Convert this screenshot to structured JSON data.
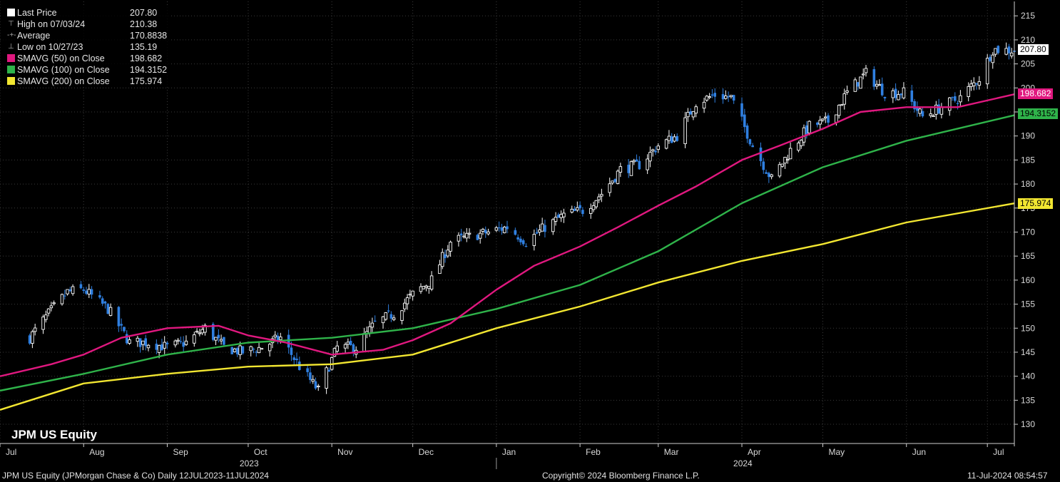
{
  "legend": {
    "last_price_label": "Last Price",
    "last_price_value": "207.80",
    "high_label": "High on 07/03/24",
    "high_value": "210.38",
    "average_label": "Average",
    "average_value": "170.8838",
    "low_label": "Low on 10/27/23",
    "low_value": "135.19",
    "sma50_label": "SMAVG (50)  on Close",
    "sma50_value": "198.682",
    "sma100_label": "SMAVG (100)  on Close",
    "sma100_value": "194.3152",
    "sma200_label": "SMAVG (200)  on Close",
    "sma200_value": "175.974"
  },
  "ticker_label": "JPM US Equity",
  "footer": {
    "left": "JPM US Equity (JPMorgan Chase & Co)  Daily 12JUL2023-11JUL2024",
    "center": "Copyright© 2024 Bloomberg Finance L.P.",
    "right": "11-Jul-2024 08:54:57"
  },
  "colors": {
    "background": "#000000",
    "up_candle": "#ffffff",
    "down_candle": "#2f7fe0",
    "sma50": "#e0187f",
    "sma100": "#2fb34a",
    "sma200": "#f2e631",
    "last_tag": "#ffffff",
    "grid": "#3a3a3a"
  },
  "chart_data": {
    "type": "candlestick",
    "x_range": [
      "2023-07-01",
      "2024-07-11"
    ],
    "ylim": [
      126,
      218
    ],
    "y_ticks": [
      130,
      135,
      140,
      145,
      150,
      155,
      160,
      165,
      170,
      175,
      180,
      185,
      190,
      195,
      200,
      205,
      210,
      215
    ],
    "month_ticks": [
      {
        "label": "Jul",
        "date": "2023-07-01"
      },
      {
        "label": "Aug",
        "date": "2023-08-01"
      },
      {
        "label": "Sep",
        "date": "2023-09-01"
      },
      {
        "label": "Oct",
        "date": "2023-10-01"
      },
      {
        "label": "Nov",
        "date": "2023-11-01"
      },
      {
        "label": "Dec",
        "date": "2023-12-01"
      },
      {
        "label": "Jan",
        "date": "2024-01-01"
      },
      {
        "label": "Feb",
        "date": "2024-02-01"
      },
      {
        "label": "Mar",
        "date": "2024-03-01"
      },
      {
        "label": "Apr",
        "date": "2024-04-01"
      },
      {
        "label": "May",
        "date": "2024-05-01"
      },
      {
        "label": "Jun",
        "date": "2024-06-01"
      },
      {
        "label": "Jul",
        "date": "2024-07-01"
      }
    ],
    "year_labels": [
      {
        "label": "2023",
        "date": "2023-10-01"
      },
      {
        "label": "2024",
        "date": "2024-04-01"
      }
    ],
    "year_divider": "2024-01-01",
    "price_path": [
      {
        "date": "2023-07-12",
        "close": 148
      },
      {
        "date": "2023-07-19",
        "close": 153
      },
      {
        "date": "2023-07-26",
        "close": 157.5
      },
      {
        "date": "2023-08-01",
        "close": 158
      },
      {
        "date": "2023-08-10",
        "close": 154
      },
      {
        "date": "2023-08-18",
        "close": 147
      },
      {
        "date": "2023-08-25",
        "close": 147
      },
      {
        "date": "2023-09-01",
        "close": 146
      },
      {
        "date": "2023-09-08",
        "close": 147
      },
      {
        "date": "2023-09-15",
        "close": 150
      },
      {
        "date": "2023-09-22",
        "close": 146
      },
      {
        "date": "2023-09-29",
        "close": 145
      },
      {
        "date": "2023-10-06",
        "close": 146
      },
      {
        "date": "2023-10-13",
        "close": 148
      },
      {
        "date": "2023-10-20",
        "close": 142
      },
      {
        "date": "2023-10-27",
        "close": 137
      },
      {
        "date": "2023-11-03",
        "close": 146
      },
      {
        "date": "2023-11-10",
        "close": 146
      },
      {
        "date": "2023-11-17",
        "close": 151
      },
      {
        "date": "2023-11-24",
        "close": 153
      },
      {
        "date": "2023-12-01",
        "close": 157
      },
      {
        "date": "2023-12-08",
        "close": 160
      },
      {
        "date": "2023-12-15",
        "close": 168
      },
      {
        "date": "2023-12-22",
        "close": 169
      },
      {
        "date": "2023-12-29",
        "close": 170
      },
      {
        "date": "2024-01-05",
        "close": 171
      },
      {
        "date": "2024-01-12",
        "close": 168
      },
      {
        "date": "2024-01-19",
        "close": 171
      },
      {
        "date": "2024-01-26",
        "close": 173.5
      },
      {
        "date": "2024-02-02",
        "close": 174.5
      },
      {
        "date": "2024-02-09",
        "close": 178
      },
      {
        "date": "2024-02-16",
        "close": 183
      },
      {
        "date": "2024-02-23",
        "close": 184
      },
      {
        "date": "2024-03-01",
        "close": 188
      },
      {
        "date": "2024-03-08",
        "close": 190
      },
      {
        "date": "2024-03-15",
        "close": 197
      },
      {
        "date": "2024-03-22",
        "close": 198.5
      },
      {
        "date": "2024-03-28",
        "close": 198
      },
      {
        "date": "2024-04-05",
        "close": 188
      },
      {
        "date": "2024-04-12",
        "close": 181
      },
      {
        "date": "2024-04-19",
        "close": 187
      },
      {
        "date": "2024-04-26",
        "close": 192
      },
      {
        "date": "2024-05-03",
        "close": 193
      },
      {
        "date": "2024-05-10",
        "close": 199
      },
      {
        "date": "2024-05-17",
        "close": 203
      },
      {
        "date": "2024-05-24",
        "close": 199
      },
      {
        "date": "2024-05-31",
        "close": 199
      },
      {
        "date": "2024-06-07",
        "close": 194
      },
      {
        "date": "2024-06-14",
        "close": 196
      },
      {
        "date": "2024-06-21",
        "close": 198
      },
      {
        "date": "2024-06-28",
        "close": 202
      },
      {
        "date": "2024-07-03",
        "close": 208
      },
      {
        "date": "2024-07-11",
        "close": 207.8
      }
    ],
    "sma50": [
      {
        "date": "2023-07-01",
        "value": 140
      },
      {
        "date": "2023-07-20",
        "value": 142.5
      },
      {
        "date": "2023-08-01",
        "value": 144.5
      },
      {
        "date": "2023-08-15",
        "value": 148
      },
      {
        "date": "2023-09-01",
        "value": 150
      },
      {
        "date": "2023-09-20",
        "value": 150.5
      },
      {
        "date": "2023-10-01",
        "value": 148.5
      },
      {
        "date": "2023-10-15",
        "value": 147
      },
      {
        "date": "2023-11-01",
        "value": 144.5
      },
      {
        "date": "2023-11-20",
        "value": 145.5
      },
      {
        "date": "2023-12-01",
        "value": 147.5
      },
      {
        "date": "2023-12-15",
        "value": 151
      },
      {
        "date": "2024-01-01",
        "value": 158
      },
      {
        "date": "2024-01-15",
        "value": 163
      },
      {
        "date": "2024-02-01",
        "value": 167
      },
      {
        "date": "2024-02-15",
        "value": 171
      },
      {
        "date": "2024-03-01",
        "value": 175.5
      },
      {
        "date": "2024-03-15",
        "value": 179.5
      },
      {
        "date": "2024-04-01",
        "value": 185
      },
      {
        "date": "2024-04-15",
        "value": 188
      },
      {
        "date": "2024-05-01",
        "value": 191.5
      },
      {
        "date": "2024-05-15",
        "value": 195
      },
      {
        "date": "2024-06-01",
        "value": 196
      },
      {
        "date": "2024-06-20",
        "value": 196
      },
      {
        "date": "2024-07-11",
        "value": 198.682
      }
    ],
    "sma100": [
      {
        "date": "2023-07-01",
        "value": 137
      },
      {
        "date": "2023-08-01",
        "value": 140.5
      },
      {
        "date": "2023-09-01",
        "value": 144.5
      },
      {
        "date": "2023-10-01",
        "value": 147
      },
      {
        "date": "2023-11-01",
        "value": 148
      },
      {
        "date": "2023-12-01",
        "value": 150
      },
      {
        "date": "2024-01-01",
        "value": 154
      },
      {
        "date": "2024-02-01",
        "value": 159
      },
      {
        "date": "2024-03-01",
        "value": 166
      },
      {
        "date": "2024-04-01",
        "value": 176
      },
      {
        "date": "2024-05-01",
        "value": 183.5
      },
      {
        "date": "2024-06-01",
        "value": 189
      },
      {
        "date": "2024-07-11",
        "value": 194.3152
      }
    ],
    "sma200": [
      {
        "date": "2023-07-01",
        "value": 133
      },
      {
        "date": "2023-08-01",
        "value": 138.5
      },
      {
        "date": "2023-09-01",
        "value": 140.5
      },
      {
        "date": "2023-10-01",
        "value": 142
      },
      {
        "date": "2023-11-01",
        "value": 142.5
      },
      {
        "date": "2023-12-01",
        "value": 144.5
      },
      {
        "date": "2024-01-01",
        "value": 150
      },
      {
        "date": "2024-02-01",
        "value": 154.5
      },
      {
        "date": "2024-03-01",
        "value": 159.5
      },
      {
        "date": "2024-04-01",
        "value": 164
      },
      {
        "date": "2024-05-01",
        "value": 167.5
      },
      {
        "date": "2024-06-01",
        "value": 172
      },
      {
        "date": "2024-07-11",
        "value": 175.974
      }
    ],
    "last_values": {
      "last": "207.80",
      "sma50": "198.682",
      "sma100": "194.3152",
      "sma200": "175.974"
    }
  }
}
